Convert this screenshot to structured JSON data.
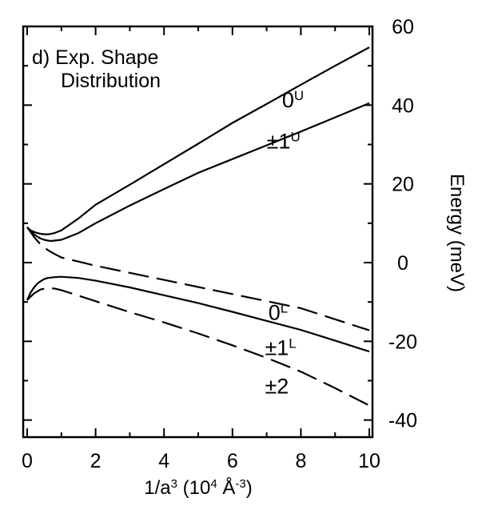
{
  "chart_data": {
    "type": "line",
    "title": "",
    "panel_label": [
      "d) Exp. Shape",
      "Distribution"
    ],
    "xlabel": {
      "parts": [
        {
          "text": "1/a",
          "sup": false
        },
        {
          "text": "3",
          "sup": true
        },
        {
          "text": " (10",
          "sup": false
        },
        {
          "text": "4",
          "sup": true
        },
        {
          "text": " Å",
          "sup": false
        },
        {
          "text": "-3",
          "sup": true
        },
        {
          "text": ")",
          "sup": false
        }
      ]
    },
    "ylabel": "Energy (meV)",
    "xlim": [
      0,
      10
    ],
    "ylim": [
      -44,
      60
    ],
    "x_ticks": [
      0,
      2,
      4,
      6,
      8,
      10
    ],
    "x_tick_labels": [
      "0",
      "2",
      "4",
      "6",
      "8",
      "10"
    ],
    "y_ticks": [
      60,
      40,
      20,
      0,
      -20,
      -40
    ],
    "y_tick_labels": [
      "60",
      "40",
      "20",
      "0",
      "-20",
      "-40"
    ],
    "y_axis_side": "right",
    "grid": false,
    "legend": "none (curves labeled inline)",
    "series": [
      {
        "label_base": "0",
        "label_sup": "U",
        "label_at": [
          7.45,
          41.5
        ],
        "style": "solid",
        "x": [
          0,
          0.1,
          0.2,
          0.3,
          0.4,
          0.5,
          0.6,
          0.7,
          0.8,
          1,
          1.5,
          2,
          3,
          4,
          5,
          6,
          7,
          8,
          9,
          10
        ],
        "y": [
          9,
          8.2,
          7.8,
          7.5,
          7.3,
          7.2,
          7.2,
          7.3,
          7.5,
          8.2,
          11.2,
          14.7,
          19.8,
          25,
          30.2,
          35.5,
          40.3,
          45.2,
          50,
          54.7
        ]
      },
      {
        "label_base": "±1",
        "label_sup": "U",
        "label_at": [
          7.0,
          31.0
        ],
        "style": "solid",
        "x": [
          0,
          0.1,
          0.2,
          0.3,
          0.4,
          0.5,
          0.6,
          0.7,
          0.8,
          1,
          1.5,
          2,
          3,
          4,
          5,
          6,
          7,
          8,
          9,
          10
        ],
        "y": [
          9,
          8,
          7.2,
          6.6,
          6.1,
          5.8,
          5.6,
          5.5,
          5.6,
          5.8,
          7.5,
          10,
          14.5,
          18.7,
          22.8,
          26.3,
          29.8,
          33.3,
          36.9,
          40.5
        ]
      },
      {
        "label_base": "0",
        "label_sup": "L",
        "label_at": [
          7.05,
          -12.5
        ],
        "style": "dashed",
        "x": [
          0,
          0.2,
          0.4,
          0.6,
          0.8,
          1,
          2,
          3,
          4,
          5,
          6,
          7,
          8,
          9,
          10
        ],
        "y": [
          9,
          6.5,
          4.5,
          3.2,
          2.2,
          1.3,
          -0.8,
          -2.6,
          -4.4,
          -6.2,
          -8,
          -9.8,
          -11.6,
          -14.4,
          -17.2
        ]
      },
      {
        "label_base": "±1",
        "label_sup": "L",
        "label_at": [
          6.95,
          -21.5
        ],
        "style": "solid",
        "x": [
          0,
          0.1,
          0.2,
          0.3,
          0.4,
          0.5,
          0.6,
          0.8,
          1,
          1.5,
          2,
          3,
          4,
          5,
          6,
          7,
          8,
          9,
          10
        ],
        "y": [
          -9.5,
          -7.6,
          -6.3,
          -5.3,
          -4.7,
          -4.2,
          -3.9,
          -3.7,
          -3.6,
          -3.9,
          -4.6,
          -6.3,
          -8.3,
          -10.3,
          -12.5,
          -14.8,
          -17.1,
          -19.8,
          -22.6
        ]
      },
      {
        "label_base": "±2",
        "label_sup": "",
        "label_at": [
          6.95,
          -31.2
        ],
        "style": "dashed",
        "x": [
          0,
          0.2,
          0.4,
          0.6,
          0.8,
          1,
          2,
          3,
          4,
          5,
          6,
          7,
          8,
          9,
          10
        ],
        "y": [
          -9.5,
          -7.8,
          -6.8,
          -6.5,
          -6.6,
          -7,
          -9.8,
          -12.6,
          -15.2,
          -18,
          -21,
          -24.2,
          -27.7,
          -31.9,
          -36.3
        ]
      }
    ]
  }
}
